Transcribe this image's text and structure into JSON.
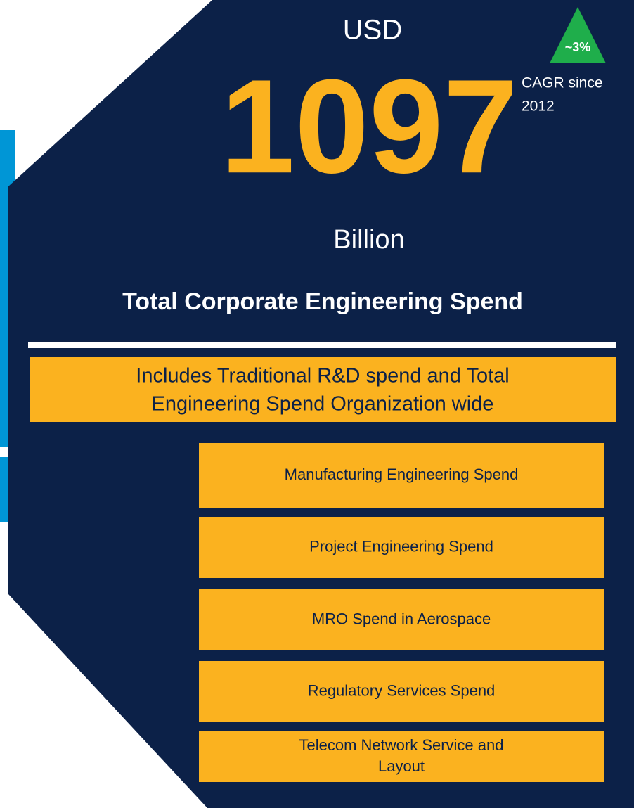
{
  "header": {
    "currency": "USD",
    "value": "1097",
    "unit": "Billion",
    "title": "Total Corporate Engineering Spend",
    "badge": "~3%",
    "badge_note": [
      "CAGR since",
      "2012"
    ]
  },
  "description": [
    "Includes Traditional R&D spend and Total",
    "Engineering Spend Organization wide"
  ],
  "items": [
    [
      "Manufacturing Engineering Spend"
    ],
    [
      "Project Engineering Spend"
    ],
    [
      "MRO Spend in Aerospace"
    ],
    [
      "Regulatory Services Spend"
    ],
    [
      "Telecom Network Service and",
      "Layout"
    ]
  ]
}
